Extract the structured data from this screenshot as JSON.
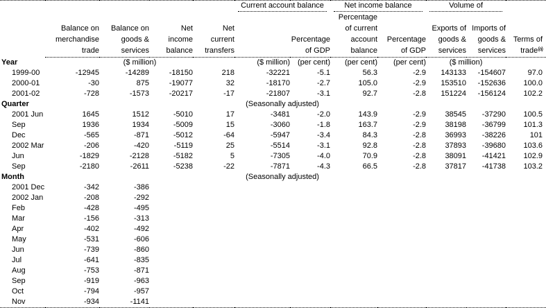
{
  "table": {
    "spanners": [
      "Current account balance",
      "Net income balance",
      "Volume of"
    ],
    "headers": {
      "period": "",
      "balance_merchandise_trade": "Balance on\nmerchandise\ntrade",
      "balance_goods_services": "Balance on\ngoods &\nservices",
      "net_income_balance": "Net\nincome\nbalance",
      "net_current_transfers": "Net\ncurrent\ntransfers",
      "current_account_balance_amount": "",
      "cab_percentage_of_gdp": "Percentage\nof GDP",
      "percentage_of_current_account_balance": "Percentage\nof current\naccount\nbalance",
      "nib_percentage_of_gdp": "Percentage\nof GDP",
      "exports_goods_services": "Exports of\ngoods &\nservices",
      "imports_goods_services": "Imports of\ngoods &\nservices",
      "terms_of_trade": "Terms of\ntrade",
      "terms_of_trade_footnote": "(a)"
    },
    "sections": [
      {
        "label": "Year",
        "annotations": [
          {
            "span": 4,
            "align": "center",
            "text": "($ million)"
          },
          {
            "span": 1,
            "align": "right",
            "text": "($ million)"
          },
          {
            "span": 1,
            "align": "right",
            "text": "(per cent)"
          },
          {
            "span": 1,
            "align": "right",
            "text": "(per cent)"
          },
          {
            "span": 1,
            "align": "right",
            "text": "(per cent)"
          },
          {
            "span": 2,
            "align": "center",
            "text": "($ million)"
          },
          {
            "span": 1,
            "align": "right",
            "text": ""
          }
        ],
        "rows": [
          {
            "period": "1999-00",
            "values": [
              "-12945",
              "-14289",
              "-18150",
              "218",
              "-32221",
              "-5.1",
              "56.3",
              "-2.9",
              "143133",
              "-154607",
              "97.0"
            ]
          },
          {
            "period": "2000-01",
            "values": [
              "-30",
              "875",
              "-19077",
              "32",
              "-18170",
              "-2.7",
              "105.0",
              "-2.9",
              "153510",
              "-152636",
              "100.0"
            ]
          },
          {
            "period": "2001-02",
            "values": [
              "-728",
              "-1573",
              "-20217",
              "-17",
              "-21807",
              "-3.1",
              "92.7",
              "-2.8",
              "151224",
              "-156124",
              "102.2"
            ]
          }
        ]
      },
      {
        "label": "Quarter",
        "annotations": [
          {
            "span": 4,
            "align": "center",
            "text": ""
          },
          {
            "span": 2,
            "align": "center",
            "text": "(Seasonally adjusted)"
          },
          {
            "span": 5,
            "align": "center",
            "text": ""
          }
        ],
        "rows": [
          {
            "period": "2001 Jun",
            "values": [
              "1645",
              "1512",
              "-5010",
              "17",
              "-3481",
              "-2.0",
              "143.9",
              "-2.9",
              "38545",
              "-37290",
              "100.5"
            ]
          },
          {
            "period": "Sep",
            "values": [
              "1936",
              "1934",
              "-5009",
              "15",
              "-3060",
              "-1.8",
              "163.7",
              "-2.9",
              "38198",
              "-36799",
              "101.3"
            ]
          },
          {
            "period": "Dec",
            "values": [
              "-565",
              "-871",
              "-5012",
              "-64",
              "-5947",
              "-3.4",
              "84.3",
              "-2.8",
              "36993",
              "-38226",
              "101"
            ]
          },
          {
            "period": "2002 Mar",
            "values": [
              "-206",
              "-420",
              "-5119",
              "25",
              "-5514",
              "-3.1",
              "92.8",
              "-2.8",
              "37893",
              "-39680",
              "103.6"
            ]
          },
          {
            "period": "Jun",
            "values": [
              "-1829",
              "-2128",
              "-5182",
              "5",
              "-7305",
              "-4.0",
              "70.9",
              "-2.8",
              "38091",
              "-41421",
              "102.9"
            ]
          },
          {
            "period": "Sep",
            "values": [
              "-2180",
              "-2611",
              "-5238",
              "-22",
              "-7871",
              "-4.3",
              "66.5",
              "-2.8",
              "37817",
              "-41738",
              "103.2"
            ]
          }
        ]
      },
      {
        "label": "Month",
        "annotations": [
          {
            "span": 4,
            "align": "center",
            "text": ""
          },
          {
            "span": 2,
            "align": "center",
            "text": "(Seasonally adjusted)"
          },
          {
            "span": 5,
            "align": "center",
            "text": ""
          }
        ],
        "rows": [
          {
            "period": "2001 Dec",
            "values": [
              "-342",
              "-386",
              "",
              "",
              "",
              "",
              "",
              "",
              "",
              "",
              ""
            ]
          },
          {
            "period": "2002 Jan",
            "values": [
              "-208",
              "-292",
              "",
              "",
              "",
              "",
              "",
              "",
              "",
              "",
              ""
            ]
          },
          {
            "period": "Feb",
            "values": [
              "-428",
              "-495",
              "",
              "",
              "",
              "",
              "",
              "",
              "",
              "",
              ""
            ]
          },
          {
            "period": "Mar",
            "values": [
              "-156",
              "-313",
              "",
              "",
              "",
              "",
              "",
              "",
              "",
              "",
              ""
            ]
          },
          {
            "period": "Apr",
            "values": [
              "-402",
              "-492",
              "",
              "",
              "",
              "",
              "",
              "",
              "",
              "",
              ""
            ]
          },
          {
            "period": "May",
            "values": [
              "-531",
              "-606",
              "",
              "",
              "",
              "",
              "",
              "",
              "",
              "",
              ""
            ]
          },
          {
            "period": "Jun",
            "values": [
              "-739",
              "-860",
              "",
              "",
              "",
              "",
              "",
              "",
              "",
              "",
              ""
            ]
          },
          {
            "period": "Jul",
            "values": [
              "-641",
              "-835",
              "",
              "",
              "",
              "",
              "",
              "",
              "",
              "",
              ""
            ]
          },
          {
            "period": "Aug",
            "values": [
              "-753",
              "-871",
              "",
              "",
              "",
              "",
              "",
              "",
              "",
              "",
              ""
            ]
          },
          {
            "period": "Sep",
            "values": [
              "-919",
              "-963",
              "",
              "",
              "",
              "",
              "",
              "",
              "",
              "",
              ""
            ]
          },
          {
            "period": "Oct",
            "values": [
              "-794",
              "-957",
              "",
              "",
              "",
              "",
              "",
              "",
              "",
              "",
              ""
            ]
          },
          {
            "period": "Nov",
            "values": [
              "-934",
              "-1141",
              "",
              "",
              "",
              "",
              "",
              "",
              "",
              "",
              ""
            ]
          }
        ]
      }
    ]
  },
  "colors": {
    "text": "#000000",
    "background": "#ffffff",
    "rule": "#000000"
  }
}
